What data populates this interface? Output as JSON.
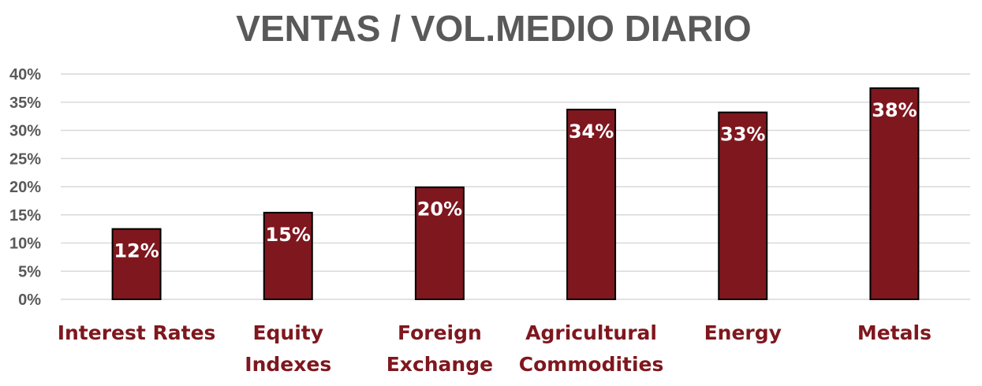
{
  "chart_data": {
    "type": "bar",
    "title": "VENTAS / VOL.MEDIO DIARIO",
    "categories": [
      [
        "Interest Rates"
      ],
      [
        "Equity",
        "Indexes"
      ],
      [
        "Foreign",
        "Exchange"
      ],
      [
        "Agricultural",
        "Commodities"
      ],
      [
        "Energy"
      ],
      [
        "Metals"
      ]
    ],
    "values": [
      12.5,
      15.4,
      19.9,
      33.7,
      33.2,
      37.5
    ],
    "data_labels": [
      "12%",
      "15%",
      "20%",
      "34%",
      "33%",
      "38%"
    ],
    "ylim": [
      0,
      40
    ],
    "yticks": [
      "0%",
      "5%",
      "10%",
      "15%",
      "20%",
      "25%",
      "30%",
      "35%",
      "40%"
    ],
    "ytick_values": [
      0,
      5,
      10,
      15,
      20,
      25,
      30,
      35,
      40
    ],
    "grid": true,
    "legend": "none",
    "colors": {
      "bar": "#7f171e",
      "bar_outline": "#000000",
      "category_label": "#7f171e",
      "title": "#595959",
      "tick_label": "#595959",
      "gridline": "#d9d9d9",
      "data_label": "#ffffff"
    }
  }
}
